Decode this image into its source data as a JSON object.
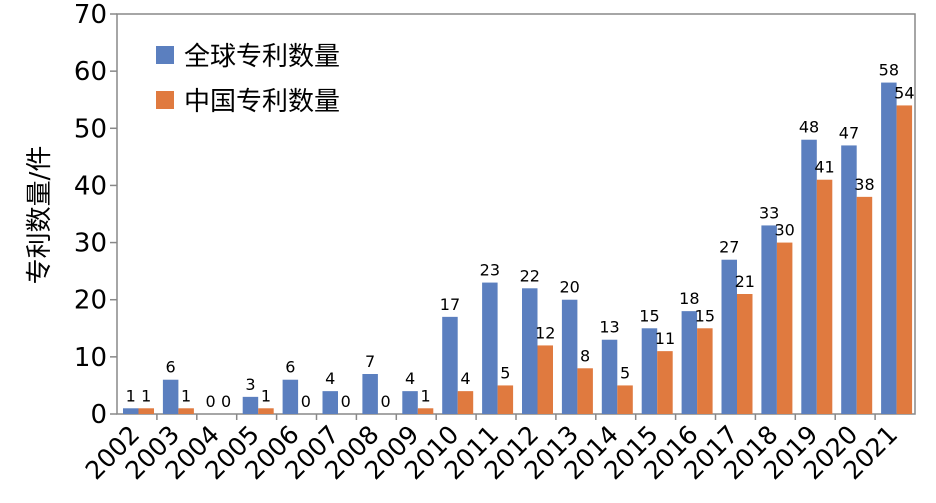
{
  "chart_data": {
    "type": "bar",
    "title": "",
    "xlabel": "",
    "ylabel": "专利数量/件",
    "ylim": [
      0,
      70
    ],
    "yticks": [
      0,
      10,
      20,
      30,
      40,
      50,
      60,
      70
    ],
    "grid": false,
    "legend_position": "top-left",
    "categories": [
      "2002",
      "2003",
      "2004",
      "2005",
      "2006",
      "2007",
      "2008",
      "2009",
      "2010",
      "2011",
      "2012",
      "2013",
      "2014",
      "2015",
      "2016",
      "2017",
      "2018",
      "2019",
      "2020",
      "2021"
    ],
    "series": [
      {
        "name": "全球专利数量",
        "color": "#5B7FBF",
        "values": [
          1,
          6,
          0,
          3,
          6,
          4,
          7,
          4,
          17,
          23,
          22,
          20,
          13,
          15,
          18,
          27,
          33,
          48,
          47,
          58
        ]
      },
      {
        "name": "中国专利数量",
        "color": "#E07A3F",
        "values": [
          1,
          1,
          0,
          1,
          0,
          0,
          0,
          1,
          4,
          5,
          12,
          8,
          5,
          11,
          15,
          21,
          30,
          41,
          38,
          54
        ]
      }
    ]
  }
}
